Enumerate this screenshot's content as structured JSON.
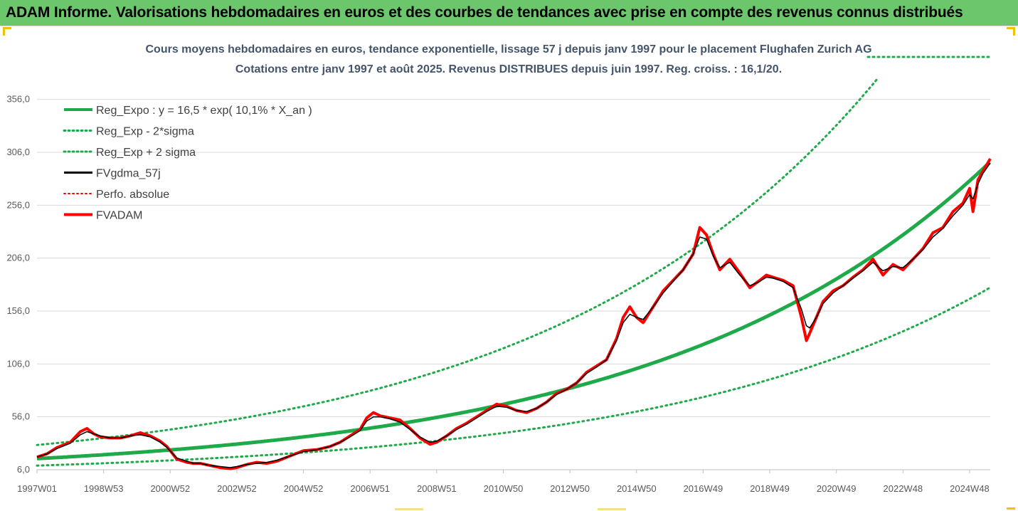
{
  "header": {
    "banner": "ADAM Informe. Valorisations hebdomadaires en euros et des courbes de tendances avec prise en compte des revenus connus distribués"
  },
  "colors": {
    "banner_bg": "#6cc66c",
    "trend_green": "#1faa4a",
    "price_red": "#ff0000",
    "smooth_black": "#000000",
    "text_gray": "#44546a"
  },
  "chart_data": {
    "type": "line",
    "title": "Cours moyens hebdomadaires en euros, tendance exponentielle, lissage 57 j depuis janv 1997 pour le placement Flughafen Zurich AG",
    "subtitle": "Cotations entre janv 1997 et août 2025. Revenus DISTRIBUES depuis juin 1997. Reg. croiss. : 16,1/20.",
    "xlabel": "",
    "ylabel": "",
    "x_ticks": [
      "1997W01",
      "1998W53",
      "2000W52",
      "2002W52",
      "2004W52",
      "2006W51",
      "2008W51",
      "2010W50",
      "2012W50",
      "2014W50",
      "2016W49",
      "2018W49",
      "2020W49",
      "2022W48",
      "2024W48"
    ],
    "x_range_years": [
      1997.0,
      2025.62
    ],
    "y_ticks": [
      "6,0",
      "56,0",
      "106,0",
      "156,0",
      "206,0",
      "256,0",
      "306,0",
      "356,0"
    ],
    "ylim": [
      6,
      376
    ],
    "grid": "horizontal",
    "legend_position": "top-left",
    "legend": [
      {
        "label": "Reg_Expo : y = 16,5 * exp( 10,1% *  X_an )",
        "color": "#1faa4a",
        "style": "solid-thick"
      },
      {
        "label": "Reg_Exp - 2*sigma",
        "color": "#1faa4a",
        "style": "dotted"
      },
      {
        "label": "Reg_Exp + 2 sigma",
        "color": "#1faa4a",
        "style": "dotted"
      },
      {
        "label": "FVgdma_57j",
        "color": "#000000",
        "style": "solid"
      },
      {
        "label": "Perfo. absolue",
        "color": "#ff0000",
        "style": "dotted"
      },
      {
        "label": "FVADAM",
        "color": "#ff0000",
        "style": "solid-thick"
      }
    ],
    "regression": {
      "a": 16.5,
      "rate": 0.101,
      "lower_factor": 0.6,
      "upper_factor": 1.78
    },
    "series": [
      {
        "name": "FVADAM",
        "x": [
          1997.0,
          1997.3,
          1997.6,
          1998.0,
          1998.3,
          1998.5,
          1998.7,
          1998.9,
          1999.2,
          1999.5,
          1999.8,
          2000.1,
          2000.4,
          2000.7,
          2000.9,
          2001.2,
          2001.5,
          2001.7,
          2001.9,
          2002.2,
          2002.5,
          2002.8,
          2003.0,
          2003.3,
          2003.6,
          2003.9,
          2004.2,
          2004.6,
          2005.0,
          2005.4,
          2005.8,
          2006.1,
          2006.4,
          2006.7,
          2006.9,
          2007.1,
          2007.3,
          2007.6,
          2007.9,
          2008.2,
          2008.5,
          2008.8,
          2009.0,
          2009.3,
          2009.6,
          2009.9,
          2010.2,
          2010.5,
          2010.8,
          2011.1,
          2011.4,
          2011.7,
          2012.0,
          2012.3,
          2012.6,
          2012.9,
          2013.2,
          2013.5,
          2013.8,
          2014.1,
          2014.4,
          2014.6,
          2014.8,
          2015.0,
          2015.2,
          2015.5,
          2015.8,
          2016.1,
          2016.4,
          2016.7,
          2016.9,
          2017.1,
          2017.3,
          2017.5,
          2017.8,
          2018.1,
          2018.4,
          2018.7,
          2018.9,
          2019.1,
          2019.4,
          2019.7,
          2019.95,
          2020.1,
          2020.2,
          2020.4,
          2020.6,
          2020.9,
          2021.2,
          2021.5,
          2021.8,
          2022.1,
          2022.4,
          2022.7,
          2023.0,
          2023.3,
          2023.6,
          2023.9,
          2024.2,
          2024.5,
          2024.8,
          2025.0,
          2025.1,
          2025.25,
          2025.4,
          2025.62
        ],
        "values": [
          18,
          21,
          27,
          32,
          42,
          45,
          40,
          37,
          36,
          36,
          38,
          41,
          38,
          33,
          28,
          16,
          13,
          12,
          12,
          10,
          8,
          7,
          8,
          11,
          13,
          12,
          14,
          19,
          24,
          25,
          28,
          32,
          38,
          44,
          55,
          60,
          57,
          55,
          53,
          45,
          36,
          30,
          32,
          38,
          45,
          50,
          56,
          62,
          68,
          66,
          62,
          60,
          64,
          70,
          78,
          82,
          88,
          98,
          104,
          110,
          130,
          150,
          160,
          150,
          145,
          160,
          175,
          185,
          195,
          210,
          235,
          228,
          210,
          195,
          205,
          192,
          178,
          185,
          190,
          188,
          185,
          180,
          150,
          128,
          135,
          150,
          165,
          175,
          180,
          188,
          195,
          205,
          190,
          200,
          195,
          205,
          215,
          230,
          235,
          250,
          258,
          272,
          250,
          280,
          288,
          300
        ]
      },
      {
        "name": "FVgdma_57j",
        "x": [
          1997.0,
          1997.3,
          1997.6,
          1998.0,
          1998.3,
          1998.5,
          1998.7,
          1998.9,
          1999.2,
          1999.5,
          1999.8,
          2000.1,
          2000.4,
          2000.7,
          2000.9,
          2001.2,
          2001.5,
          2001.7,
          2001.9,
          2002.2,
          2002.5,
          2002.8,
          2003.0,
          2003.3,
          2003.6,
          2003.9,
          2004.2,
          2004.6,
          2005.0,
          2005.4,
          2005.8,
          2006.1,
          2006.4,
          2006.7,
          2006.9,
          2007.1,
          2007.3,
          2007.6,
          2007.9,
          2008.2,
          2008.5,
          2008.8,
          2009.0,
          2009.3,
          2009.6,
          2009.9,
          2010.2,
          2010.5,
          2010.8,
          2011.1,
          2011.4,
          2011.7,
          2012.0,
          2012.3,
          2012.6,
          2012.9,
          2013.2,
          2013.5,
          2013.8,
          2014.1,
          2014.4,
          2014.6,
          2014.8,
          2015.0,
          2015.2,
          2015.5,
          2015.8,
          2016.1,
          2016.4,
          2016.7,
          2016.9,
          2017.1,
          2017.3,
          2017.5,
          2017.8,
          2018.1,
          2018.4,
          2018.7,
          2018.9,
          2019.1,
          2019.4,
          2019.7,
          2019.95,
          2020.1,
          2020.2,
          2020.4,
          2020.6,
          2020.9,
          2021.2,
          2021.5,
          2021.8,
          2022.1,
          2022.4,
          2022.7,
          2023.0,
          2023.3,
          2023.6,
          2023.9,
          2024.2,
          2024.5,
          2024.8,
          2025.0,
          2025.1,
          2025.25,
          2025.4,
          2025.62
        ],
        "values": [
          18,
          21,
          26,
          31,
          39,
          42,
          40,
          38,
          36,
          36,
          38,
          39,
          37,
          32,
          27,
          17,
          14,
          12,
          12,
          10,
          9,
          8,
          9,
          11,
          12,
          13,
          15,
          19,
          23,
          25,
          28,
          32,
          37,
          43,
          52,
          56,
          56,
          54,
          51,
          44,
          37,
          32,
          33,
          38,
          44,
          49,
          55,
          61,
          66,
          65,
          62,
          61,
          64,
          70,
          77,
          82,
          88,
          97,
          103,
          110,
          128,
          145,
          153,
          150,
          148,
          160,
          173,
          184,
          195,
          210,
          226,
          224,
          208,
          197,
          202,
          190,
          180,
          184,
          188,
          187,
          184,
          178,
          158,
          142,
          140,
          150,
          163,
          173,
          180,
          187,
          194,
          202,
          194,
          198,
          197,
          205,
          214,
          226,
          234,
          246,
          256,
          266,
          262,
          276,
          286,
          296
        ]
      }
    ]
  }
}
